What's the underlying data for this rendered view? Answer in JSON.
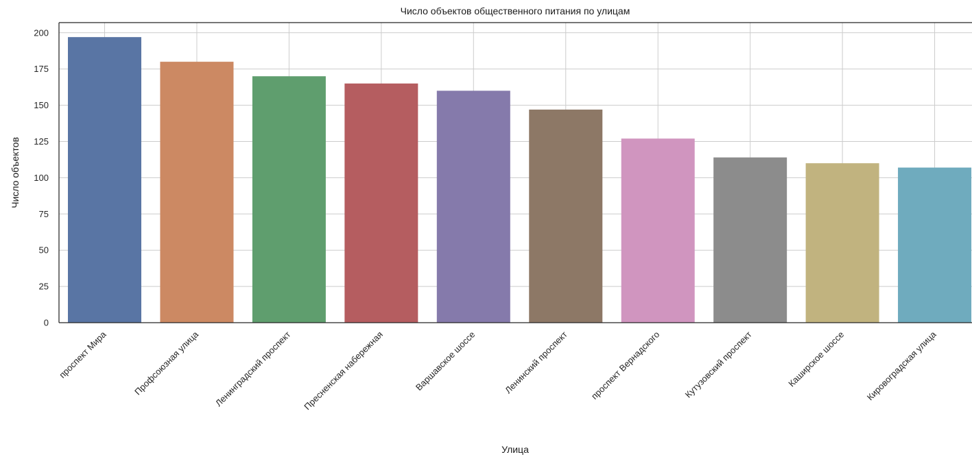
{
  "chart_data": {
    "type": "bar",
    "title": "Число объектов общественного питания по улицам",
    "xlabel": "Улица",
    "ylabel": "Число объектов",
    "categories": [
      "проспект Мира",
      "Профсоюзная улица",
      "Ленинградский проспект",
      "Пресненская набережная",
      "Варшавское шоссе",
      "Ленинский проспект",
      "проспект Вернадского",
      "Кутузовский проспект",
      "Каширское шоссе",
      "Кировоградская улица"
    ],
    "values": [
      197,
      180,
      170,
      165,
      160,
      147,
      127,
      114,
      110,
      107
    ],
    "colors": [
      "#5975a4",
      "#cc8963",
      "#5f9e6e",
      "#b55d60",
      "#857aab",
      "#8d7866",
      "#d095bf",
      "#8c8c8c",
      "#c1b37f",
      "#6fabbe"
    ],
    "ylim": [
      0,
      207
    ],
    "yticks": [
      0,
      25,
      50,
      75,
      100,
      125,
      150,
      175,
      200
    ],
    "grid": true,
    "xtick_rotation_deg": 45
  }
}
